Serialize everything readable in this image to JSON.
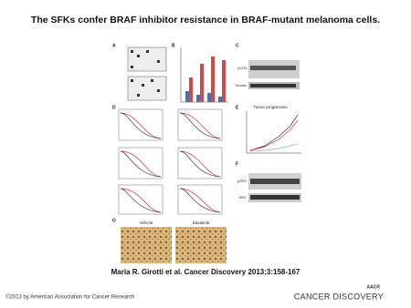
{
  "slide": {
    "title": "The SFKs confer BRAF inhibitor resistance in BRAF-mutant melanoma cells.",
    "citation": "Maria R. Girotti et al. Cancer Discovery 2013;3:158-167",
    "copyright": "©2013 by American Association for Cancer Research",
    "logo": {
      "org": "AACR",
      "journal": "CANCER DISCOVERY"
    },
    "figure": {
      "panels": [
        "A",
        "B",
        "C",
        "D",
        "E",
        "F",
        "G"
      ],
      "e_title": "Tumor progression",
      "f_blots": [
        "pSFK",
        "SRC"
      ],
      "c_blots": [
        "pLYN",
        "Tubulin"
      ],
      "g_labels": [
        "Vehicle",
        "Dasatinib"
      ]
    }
  }
}
